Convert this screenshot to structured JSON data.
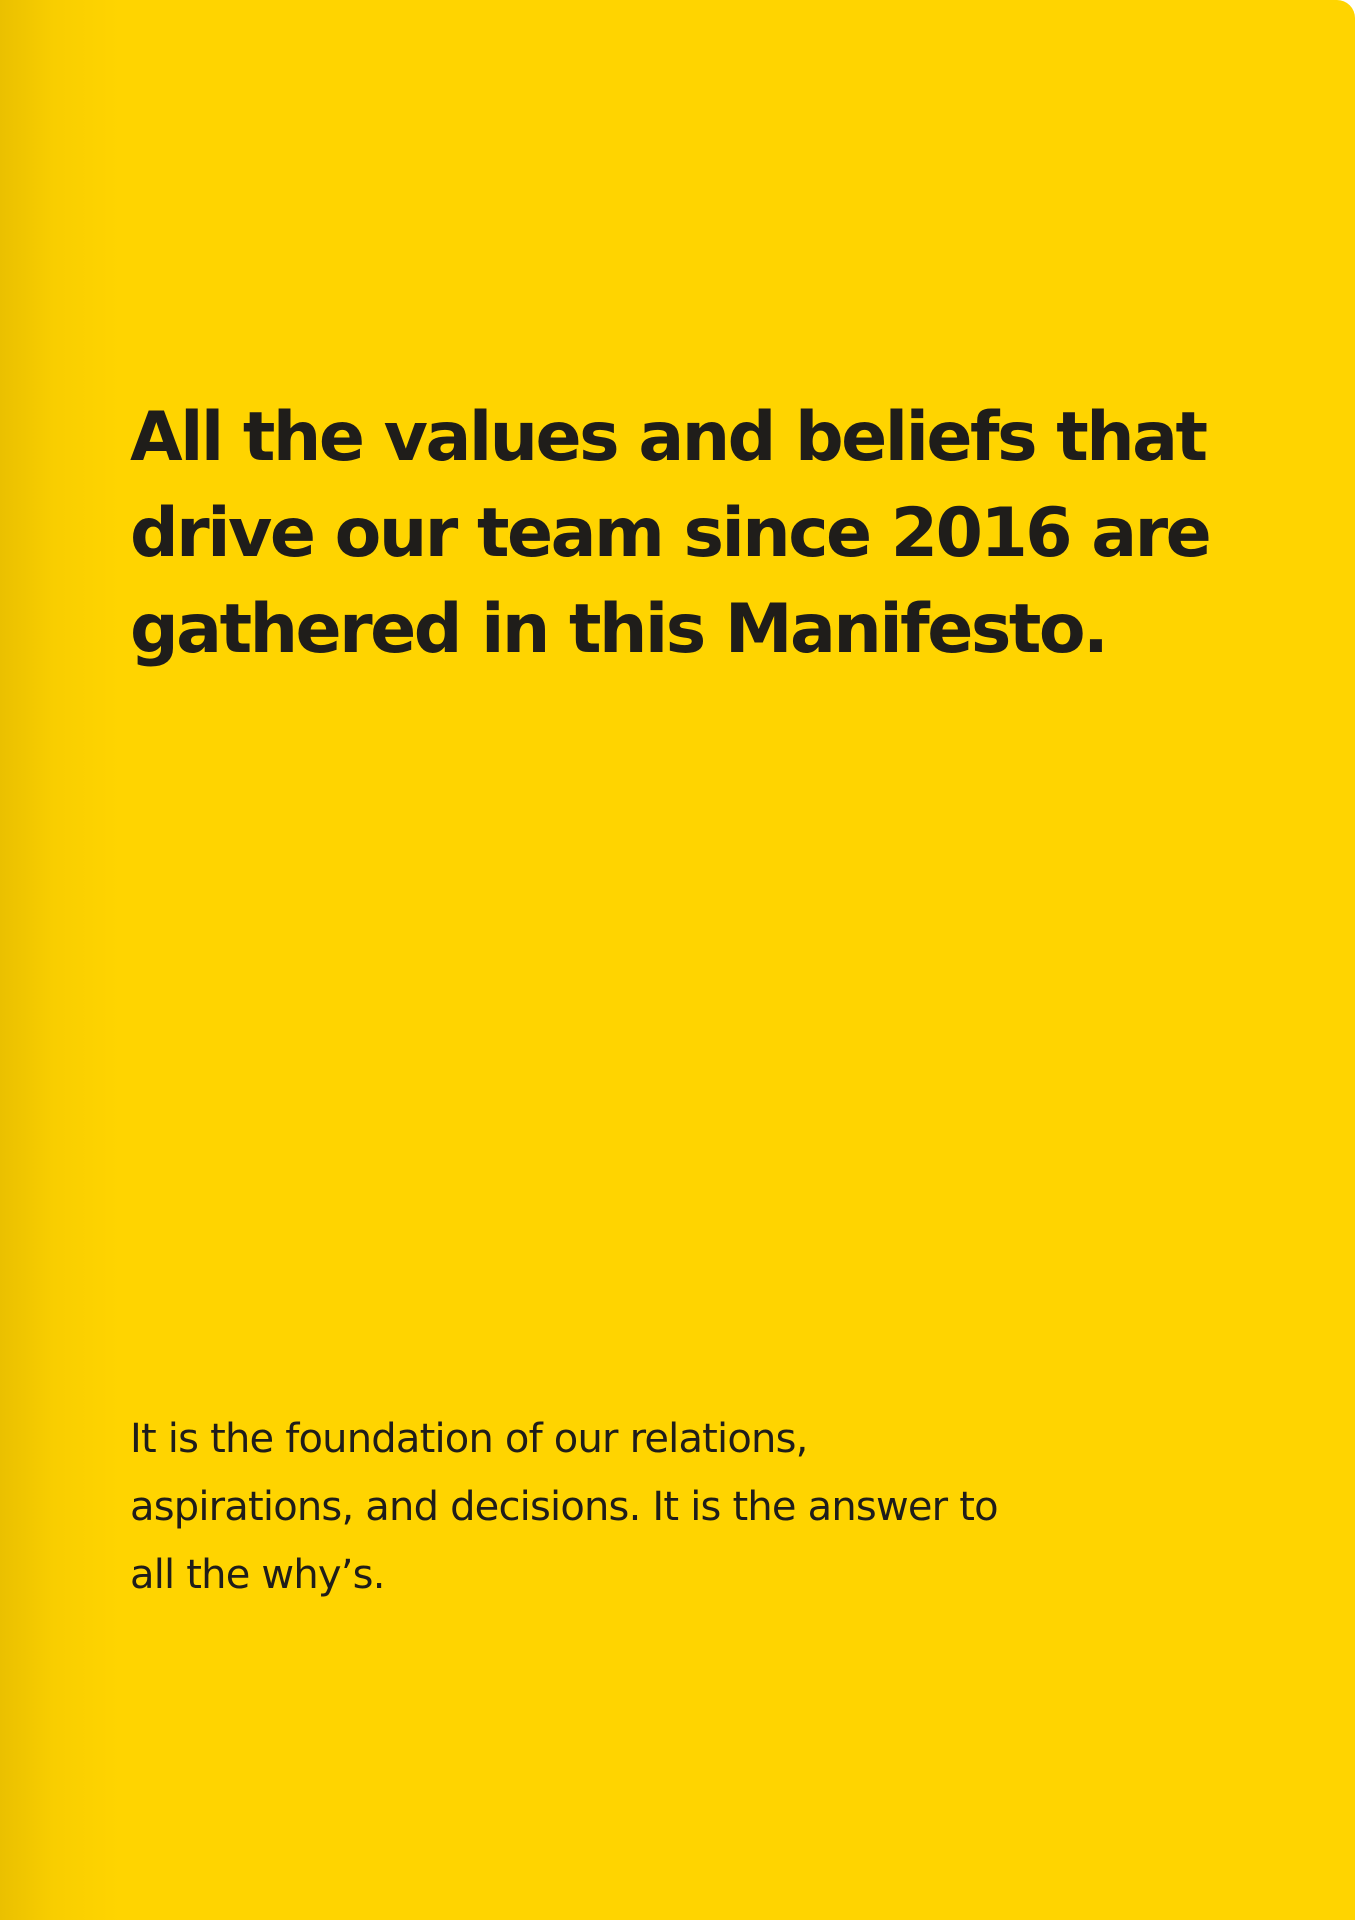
{
  "page": {
    "background_color": "#FFD400",
    "text_color": "#1f1d1a"
  },
  "headline": {
    "text": "All the values and beliefs that drive our team since 2016 are gathered in this Manifesto."
  },
  "body": {
    "text": "It is the foundation of our relations, aspirations, and decisions. It is the answer to all the why’s."
  }
}
